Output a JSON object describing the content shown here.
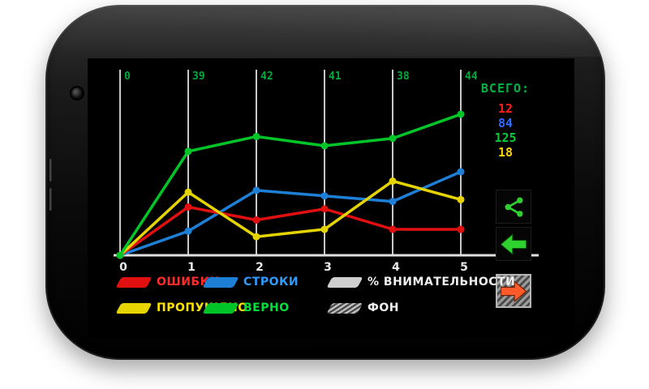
{
  "app": {
    "totals": {
      "label": "ВСЕГО:",
      "values": [
        {
          "text": "12",
          "color": "#ff1f1f"
        },
        {
          "text": "84",
          "color": "#2f6bff"
        },
        {
          "text": "125",
          "color": "#00cc3a"
        },
        {
          "text": "18",
          "color": "#ffd400"
        }
      ]
    },
    "buttons": [
      {
        "name": "share",
        "icon": "share-icon",
        "color": "#2fd12f"
      },
      {
        "name": "back",
        "icon": "arrow-left-icon",
        "color": "#2fd12f"
      },
      {
        "name": "forward",
        "icon": "arrow-right-icon",
        "color": "#ff5a2a"
      }
    ],
    "legend": [
      {
        "label": "ОШИБКИ",
        "swatch_color": "#e01010",
        "label_color": "#ff2a2a",
        "swatch_style": "solid"
      },
      {
        "label": "СТРОКИ",
        "swatch_color": "#1d7fd6",
        "label_color": "#2e9bff",
        "swatch_style": "solid"
      },
      {
        "label": "% ВНИМАТЕЛЬНОСТИ",
        "swatch_color": "#cfcfcf",
        "label_color": "#f0f0f0",
        "swatch_style": "solid"
      },
      {
        "label": "ПРОПУЩЕНО",
        "swatch_color": "#e6d400",
        "label_color": "#ffe400",
        "swatch_style": "solid"
      },
      {
        "label": "ВЕРНО",
        "swatch_color": "#00c428",
        "label_color": "#00e03c",
        "swatch_style": "solid"
      },
      {
        "label": "ФОН",
        "swatch_color": "#999999",
        "label_color": "#f0f0f0",
        "swatch_style": "hatch"
      }
    ]
  },
  "chart_data": {
    "type": "line",
    "x_labels": [
      "0",
      "1",
      "2",
      "3",
      "4",
      "5"
    ],
    "top_labels": [
      "0",
      "39",
      "42",
      "41",
      "38",
      "44"
    ],
    "top_labels_color": "#00a83e",
    "grid": "vertical",
    "gridline_color": "#c8c8c8",
    "axis_color": "#e0e0e0",
    "ylim": [
      0,
      100
    ],
    "series": [
      {
        "name": "СТРОКИ",
        "color": "#1d7fd6",
        "values": [
          0,
          13,
          35,
          32,
          29,
          45
        ]
      },
      {
        "name": "ОШИБКИ",
        "color": "#e01010",
        "values": [
          0,
          26,
          19,
          25,
          14,
          14
        ]
      },
      {
        "name": "ПРОПУЩЕНО",
        "color": "#e6d400",
        "values": [
          0,
          34,
          10,
          14,
          40,
          30
        ]
      },
      {
        "name": "ВЕРНО",
        "color": "#00c428",
        "values": [
          0,
          56,
          64,
          59,
          63,
          76
        ]
      }
    ]
  }
}
